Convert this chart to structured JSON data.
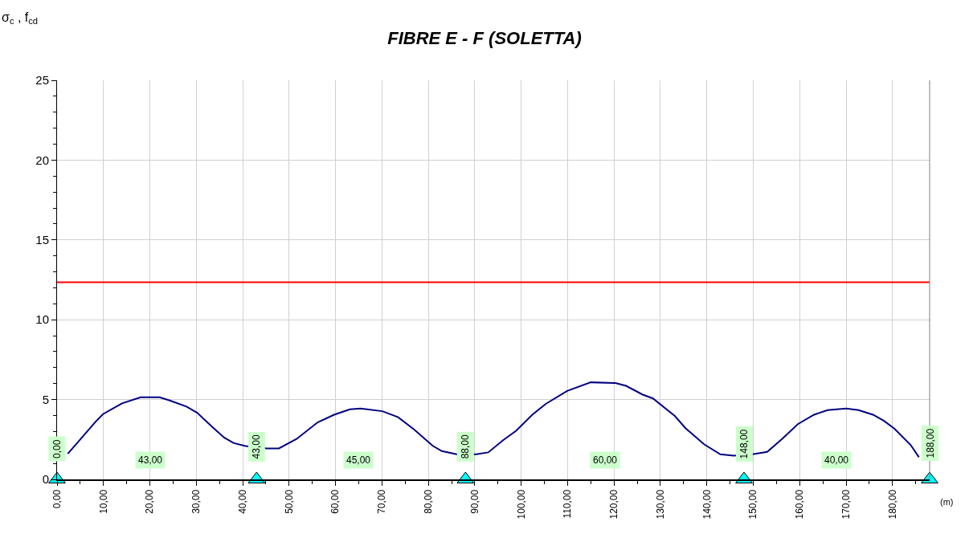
{
  "chart_data": {
    "type": "line",
    "title": "FIBRE E - F (SOLETTA)",
    "xlabel": "(m)",
    "xlim": [
      0,
      188
    ],
    "ylim": [
      0,
      25
    ],
    "xticks": [
      {
        "value": 0,
        "label": "0,00"
      },
      {
        "value": 5,
        "label": null
      },
      {
        "value": 10,
        "label": "10,00"
      },
      {
        "value": 15,
        "label": null
      },
      {
        "value": 20,
        "label": "20,00"
      },
      {
        "value": 25,
        "label": null
      },
      {
        "value": 30,
        "label": "30,00"
      },
      {
        "value": 35,
        "label": null
      },
      {
        "value": 40,
        "label": "40,00"
      },
      {
        "value": 45,
        "label": null
      },
      {
        "value": 50,
        "label": "50,00"
      },
      {
        "value": 55,
        "label": null
      },
      {
        "value": 60,
        "label": "60,00"
      },
      {
        "value": 65,
        "label": null
      },
      {
        "value": 70,
        "label": "70,00"
      },
      {
        "value": 75,
        "label": null
      },
      {
        "value": 80,
        "label": "80,00"
      },
      {
        "value": 85,
        "label": null
      },
      {
        "value": 90,
        "label": "90,00"
      },
      {
        "value": 95,
        "label": null
      },
      {
        "value": 100,
        "label": "100,00"
      },
      {
        "value": 105,
        "label": null
      },
      {
        "value": 110,
        "label": "110,00"
      },
      {
        "value": 115,
        "label": null
      },
      {
        "value": 120,
        "label": "120,00"
      },
      {
        "value": 125,
        "label": null
      },
      {
        "value": 130,
        "label": "130,00"
      },
      {
        "value": 135,
        "label": null
      },
      {
        "value": 140,
        "label": "140,00"
      },
      {
        "value": 145,
        "label": null
      },
      {
        "value": 150,
        "label": "150,00"
      },
      {
        "value": 155,
        "label": null
      },
      {
        "value": 160,
        "label": "160,00"
      },
      {
        "value": 165,
        "label": null
      },
      {
        "value": 170,
        "label": "170,00"
      },
      {
        "value": 175,
        "label": null
      },
      {
        "value": 180,
        "label": "180,00"
      },
      {
        "value": 185,
        "label": null
      }
    ],
    "yticks": [
      0,
      {
        "value": 1,
        "label": null
      },
      {
        "value": 2,
        "label": null
      },
      {
        "value": 3,
        "label": null
      },
      {
        "value": 4,
        "label": null
      },
      5,
      {
        "value": 6,
        "label": null
      },
      {
        "value": 7,
        "label": null
      },
      {
        "value": 8,
        "label": null
      },
      {
        "value": 9,
        "label": null
      },
      10,
      {
        "value": 11,
        "label": null
      },
      {
        "value": 12,
        "label": null
      },
      {
        "value": 13,
        "label": null
      },
      {
        "value": 14,
        "label": null
      },
      15,
      {
        "value": 16,
        "label": null
      },
      {
        "value": 17,
        "label": null
      },
      {
        "value": 18,
        "label": null
      },
      {
        "value": 19,
        "label": null
      },
      20,
      {
        "value": 21,
        "label": null
      },
      {
        "value": 22,
        "label": null
      },
      {
        "value": 23,
        "label": null
      },
      {
        "value": 24,
        "label": null
      },
      25
    ],
    "grid": true,
    "marker": "none",
    "line_style": "solid",
    "series": [
      {
        "color": "#000080",
        "x": [
          2.3,
          4.2,
          8.2,
          9.9,
          14.0,
          18.0,
          22.1,
          24.4,
          27.9,
          30.2,
          33.6,
          36.0,
          38.0,
          40.6,
          45.2,
          47.8,
          51.6,
          56.2,
          59.7,
          63.1,
          65.4,
          70.1,
          73.5,
          76.9,
          80.9,
          82.9,
          86.1,
          90.3,
          92.9,
          96.1,
          98.9,
          102.4,
          105.3,
          109.9,
          115.0,
          120.3,
          122.6,
          126.1,
          128.4,
          133.1,
          135.4,
          139.4,
          142.9,
          145.8,
          149.8,
          153.0,
          156.2,
          159.6,
          163.1,
          166.0,
          170.0,
          172.7,
          175.8,
          178.1,
          180.4,
          183.9,
          185.7
        ],
        "values": [
          1.6,
          2.23,
          3.58,
          4.09,
          4.76,
          5.14,
          5.14,
          4.93,
          4.56,
          4.17,
          3.24,
          2.62,
          2.28,
          2.09,
          1.94,
          1.94,
          2.53,
          3.58,
          4.05,
          4.39,
          4.44,
          4.27,
          3.89,
          3.13,
          2.11,
          1.77,
          1.57,
          1.57,
          1.69,
          2.45,
          3.04,
          4.05,
          4.73,
          5.54,
          6.08,
          6.03,
          5.86,
          5.32,
          5.07,
          3.97,
          3.21,
          2.2,
          1.57,
          1.49,
          1.57,
          1.72,
          2.53,
          3.46,
          4.05,
          4.34,
          4.44,
          4.34,
          4.05,
          3.68,
          3.18,
          2.16,
          1.39
        ]
      },
      {
        "type": "scatter",
        "marker": "triangle",
        "color": "#00ffff",
        "x": [
          0,
          43,
          88,
          148,
          188
        ],
        "values": [
          0,
          0,
          0,
          0,
          0
        ]
      }
    ],
    "ref_lines": [
      {
        "axis": "y",
        "value": 12.35,
        "color": "#ff0000",
        "line_style": "solid"
      }
    ],
    "annotations": [
      "σ$_{c}$ , f$_{cd}$",
      {
        "text": "0,00",
        "x": 0,
        "y": 0
      },
      {
        "text": "43,00",
        "x": 43,
        "y": 0
      },
      {
        "text": "88,00",
        "x": 88,
        "y": 0
      },
      {
        "text": "148,00",
        "x": 148,
        "y": 0
      },
      {
        "text": "188,00",
        "x": 188,
        "y": 0
      },
      {
        "text": "43,00",
        "x": 20,
        "y": 1.2
      },
      {
        "text": "45,00",
        "x": 65,
        "y": 1.2
      },
      {
        "text": "60,00",
        "x": 118,
        "y": 1.2
      },
      {
        "text": "40,00",
        "x": 168,
        "y": 1.2
      }
    ]
  }
}
